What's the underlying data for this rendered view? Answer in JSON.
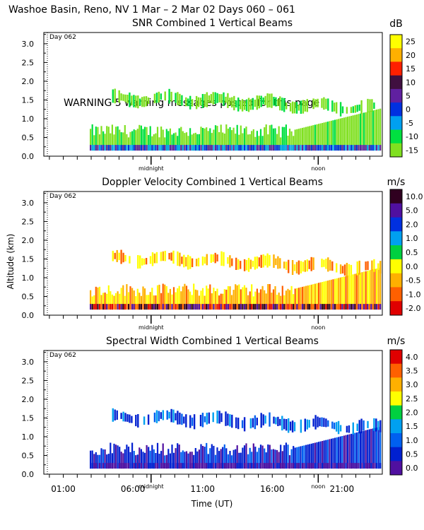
{
  "figure_title": "Washoe Basin, Reno, NV    1 Mar –  2 Mar 02 Days 060 – 061",
  "warning_text": "WARNING  5 warning messages posted for this page",
  "shared": {
    "y_label": "Altitude (km)",
    "x_label": "Time (UT)",
    "y_ticks": [
      "0.0",
      "0.5",
      "1.0",
      "1.5",
      "2.0",
      "2.5",
      "3.0"
    ],
    "x_ticks": [
      "01:00",
      "06:00",
      "11:00",
      "16:00",
      "21:00"
    ],
    "day_marker": "Day 062",
    "midnight_label": "midnight",
    "noon_label": "noon"
  },
  "chart_data": [
    {
      "type": "heatmap",
      "title": "SNR Combined 1 Vertical Beams",
      "unit": "dB",
      "xlabel": "Time (UT)",
      "ylabel": "Altitude (km)",
      "ylim": [
        0,
        3.3
      ],
      "colorbar": {
        "labels": [
          "25",
          "20",
          "15",
          "10",
          "5",
          "0",
          "-5",
          "-10",
          "-15"
        ],
        "colors": [
          "#ffff00",
          "#ffb000",
          "#ff2000",
          "#401040",
          "#6020a0",
          "#0030e0",
          "#00a0f0",
          "#00e040",
          "#80e020"
        ]
      },
      "features": [
        {
          "name": "boundary layer echo",
          "t_start": 2.9,
          "t_end": 23.8,
          "alt_from": 0.15,
          "alt_to": 0.7,
          "level": "-10 to -15 dB"
        },
        {
          "name": "elevated layer",
          "t_start": 4.5,
          "t_end": 23.8,
          "alt_from": 1.3,
          "alt_to": 1.75,
          "level": "-10 to -15 dB"
        }
      ]
    },
    {
      "type": "heatmap",
      "title": "Doppler Velocity Combined 1 Vertical Beams",
      "unit": "m/s",
      "xlabel": "Time (UT)",
      "ylabel": "Altitude (km)",
      "ylim": [
        0,
        3.3
      ],
      "colorbar": {
        "labels": [
          "10.0",
          "5.0",
          "2.0",
          "1.0",
          "0.5",
          "0.0",
          "-0.5",
          "-1.0",
          "-2.0"
        ],
        "colors": [
          "#300020",
          "#5010a0",
          "#0030e0",
          "#00a0f0",
          "#00d040",
          "#ffff00",
          "#ffb000",
          "#ff6000",
          "#e00000"
        ]
      },
      "features": [
        {
          "name": "boundary layer echo",
          "t_start": 2.9,
          "t_end": 23.8,
          "alt_from": 0.15,
          "alt_to": 0.7,
          "level": "0.0 to -0.5 m/s"
        },
        {
          "name": "elevated layer",
          "t_start": 4.5,
          "t_end": 23.8,
          "alt_from": 1.25,
          "alt_to": 1.75,
          "level": "0.0 to -0.5 m/s"
        }
      ]
    },
    {
      "type": "heatmap",
      "title": "Spectral Width Combined 1 Vertical Beams",
      "unit": "m/s",
      "xlabel": "Time (UT)",
      "ylabel": "Altitude (km)",
      "ylim": [
        0,
        3.3
      ],
      "colorbar": {
        "labels": [
          "4.0",
          "3.5",
          "3.0",
          "2.5",
          "2.0",
          "1.5",
          "1.0",
          "0.5",
          "0.0"
        ],
        "colors": [
          "#e00000",
          "#ff6000",
          "#ffb000",
          "#ffff00",
          "#00d040",
          "#00a0f0",
          "#0060f0",
          "#0020d0",
          "#5010a0"
        ]
      },
      "features": [
        {
          "name": "boundary layer echo",
          "t_start": 2.9,
          "t_end": 23.8,
          "alt_from": 0.15,
          "alt_to": 0.7,
          "level": "0.5 to 1.0 m/s"
        },
        {
          "name": "elevated layer",
          "t_start": 4.5,
          "t_end": 23.8,
          "alt_from": 1.25,
          "alt_to": 1.75,
          "level": "0.5 to 1.0 m/s"
        }
      ]
    }
  ]
}
